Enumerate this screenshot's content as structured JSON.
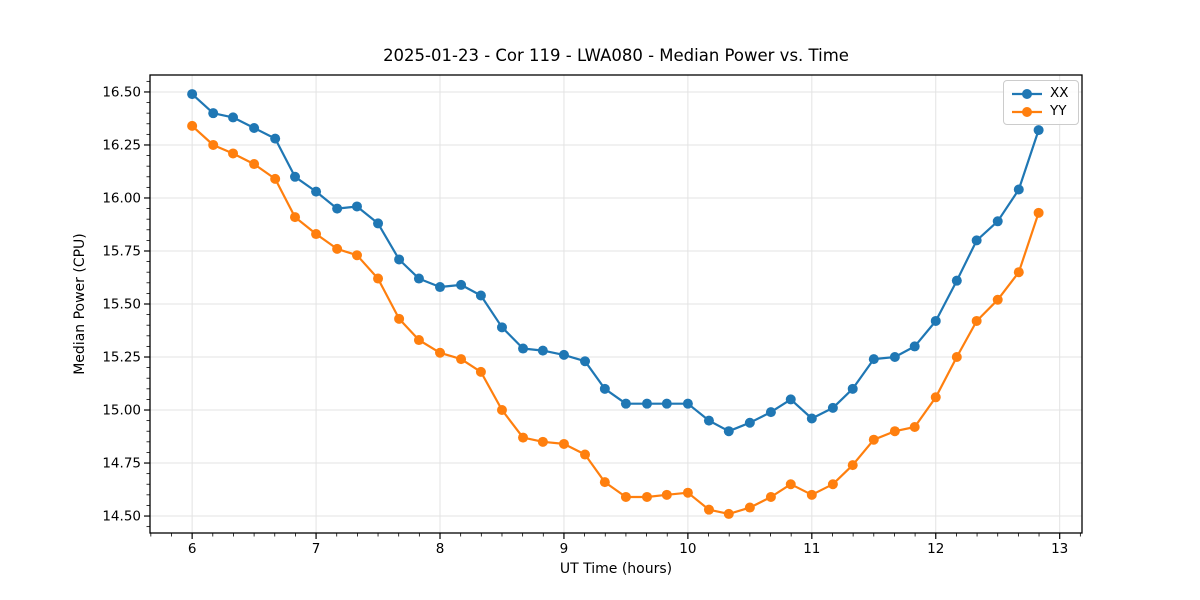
{
  "chart_data": {
    "type": "line",
    "title": "2025-01-23 - Cor 119 - LWA080 - Median Power vs. Time",
    "xlabel": "UT Time (hours)",
    "ylabel": "Median Power (CPU)",
    "xlim": [
      5.66,
      13.18
    ],
    "ylim": [
      14.42,
      16.58
    ],
    "x_ticks": [
      6,
      7,
      8,
      9,
      10,
      11,
      12,
      13
    ],
    "y_ticks": [
      14.5,
      14.75,
      15.0,
      15.25,
      15.5,
      15.75,
      16.0,
      16.25,
      16.5
    ],
    "y_tick_labels": [
      "14.50",
      "14.75",
      "15.00",
      "15.25",
      "15.50",
      "15.75",
      "16.00",
      "16.25",
      "16.50"
    ],
    "grid": true,
    "grid_color": "#e3e3e3",
    "spine_color": "#000000",
    "legend_position": "upper-right",
    "marker": "circle",
    "x": [
      6.0,
      6.17,
      6.33,
      6.5,
      6.67,
      6.83,
      7.0,
      7.17,
      7.33,
      7.5,
      7.67,
      7.83,
      8.0,
      8.17,
      8.33,
      8.5,
      8.67,
      8.83,
      9.0,
      9.17,
      9.33,
      9.5,
      9.67,
      9.83,
      10.0,
      10.17,
      10.33,
      10.5,
      10.67,
      10.83,
      11.0,
      11.17,
      11.33,
      11.5,
      11.67,
      11.83,
      12.0,
      12.17,
      12.33,
      12.5,
      12.67,
      12.83
    ],
    "series": [
      {
        "name": "XX",
        "color": "#1f77b4",
        "values": [
          16.49,
          16.4,
          16.38,
          16.33,
          16.28,
          16.1,
          16.03,
          15.95,
          15.96,
          15.88,
          15.71,
          15.62,
          15.58,
          15.59,
          15.54,
          15.39,
          15.29,
          15.28,
          15.26,
          15.23,
          15.1,
          15.03,
          15.03,
          15.03,
          15.03,
          14.95,
          14.9,
          14.94,
          14.99,
          15.05,
          14.96,
          15.01,
          15.1,
          15.24,
          15.25,
          15.3,
          15.42,
          15.61,
          15.8,
          15.89,
          16.04,
          16.32
        ]
      },
      {
        "name": "YY",
        "color": "#ff7f0e",
        "values": [
          16.34,
          16.25,
          16.21,
          16.16,
          16.09,
          15.91,
          15.83,
          15.76,
          15.73,
          15.62,
          15.43,
          15.33,
          15.27,
          15.24,
          15.18,
          15.0,
          14.87,
          14.85,
          14.84,
          14.79,
          14.66,
          14.59,
          14.59,
          14.6,
          14.61,
          14.53,
          14.51,
          14.54,
          14.59,
          14.65,
          14.6,
          14.65,
          14.74,
          14.86,
          14.9,
          14.92,
          15.06,
          15.25,
          15.42,
          15.52,
          15.65,
          15.93
        ]
      }
    ]
  }
}
